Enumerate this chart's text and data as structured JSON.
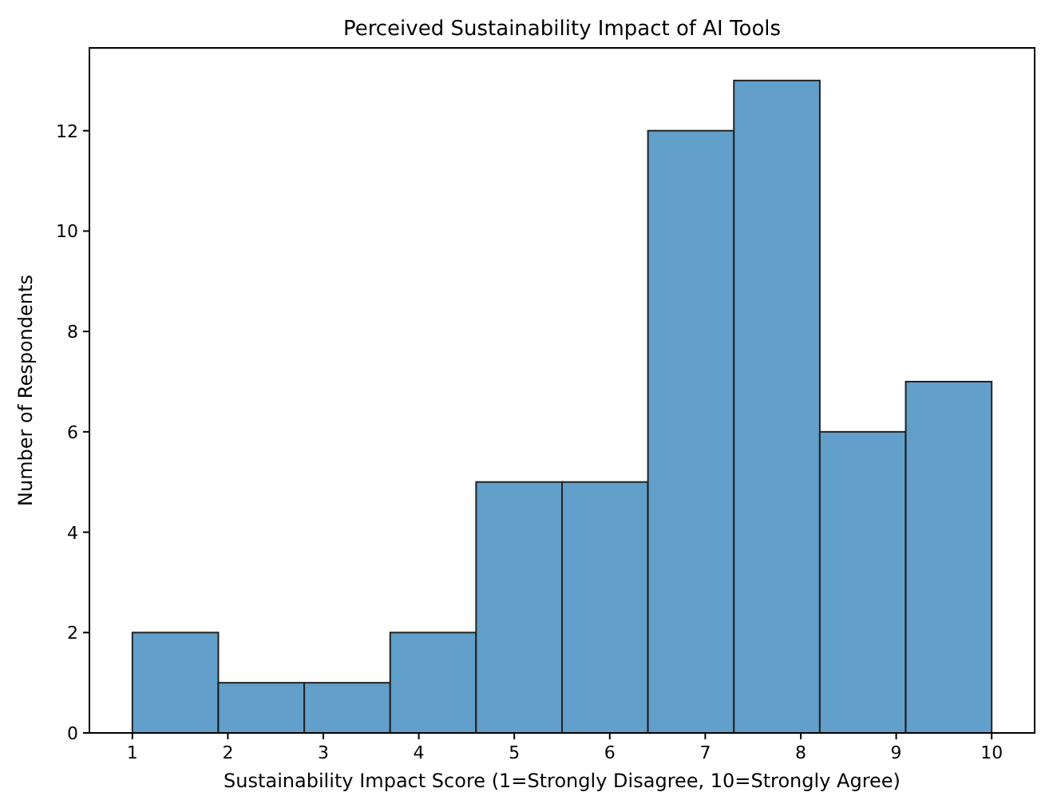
{
  "chart_data": {
    "type": "histogram",
    "title": "Perceived Sustainability Impact of AI Tools",
    "xlabel": "Sustainability Impact Score (1=Strongly Disagree, 10=Strongly Agree)",
    "ylabel": "Number of Respondents",
    "bins": [
      1,
      1.9,
      2.8,
      3.7,
      4.6,
      5.5,
      6.4,
      7.3,
      8.2,
      9.1,
      10
    ],
    "values": [
      2,
      1,
      1,
      2,
      5,
      5,
      12,
      13,
      6,
      7
    ],
    "color": "#629fca",
    "xlim": [
      0.55,
      10.45
    ],
    "xticks": [
      1,
      2,
      3,
      4,
      5,
      6,
      7,
      8,
      9,
      10
    ],
    "ylim": [
      0,
      13.65
    ],
    "yticks": [
      0,
      2,
      4,
      6,
      8,
      10,
      12
    ],
    "grid": false
  }
}
